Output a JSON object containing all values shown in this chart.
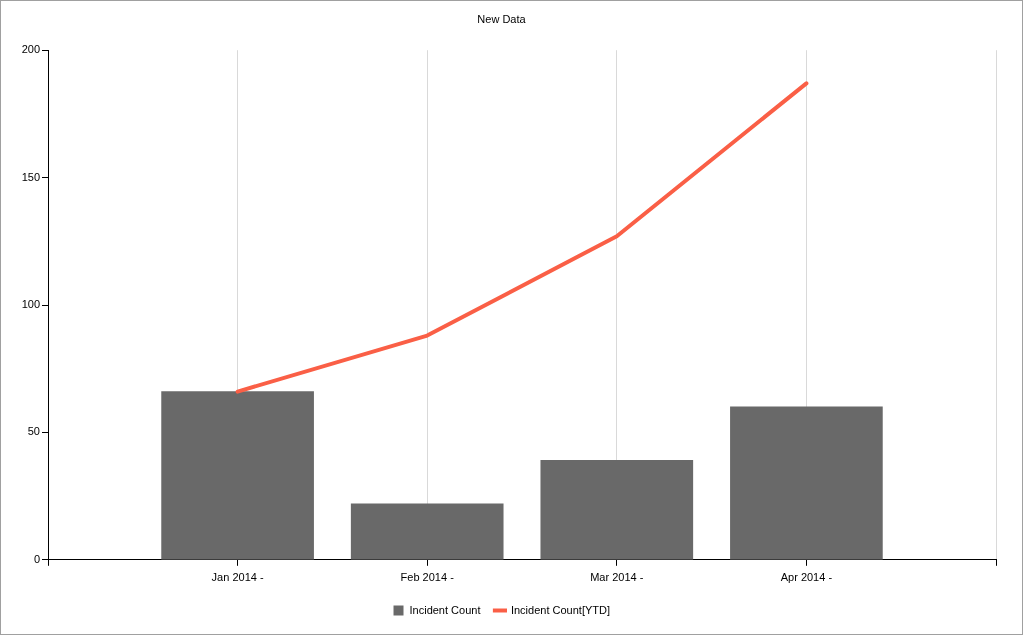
{
  "chart_data": {
    "type": "bar",
    "title": "New Data",
    "categories": [
      "Jan 2014 -",
      "Feb 2014 -",
      "Mar 2014 -",
      "Apr 2014 -"
    ],
    "series": [
      {
        "name": "Incident Count",
        "color": "#696969",
        "values": [
          66,
          22,
          39,
          60
        ]
      },
      {
        "name": "Incident Count[YTD]",
        "type": "line",
        "color": "#fa5f46",
        "values": [
          66,
          88,
          127,
          187
        ]
      }
    ],
    "ylim": [
      0,
      200
    ],
    "yticks": [
      0,
      50,
      100,
      150,
      200
    ],
    "grid": "x",
    "legend": "bottom",
    "marker": "none"
  }
}
